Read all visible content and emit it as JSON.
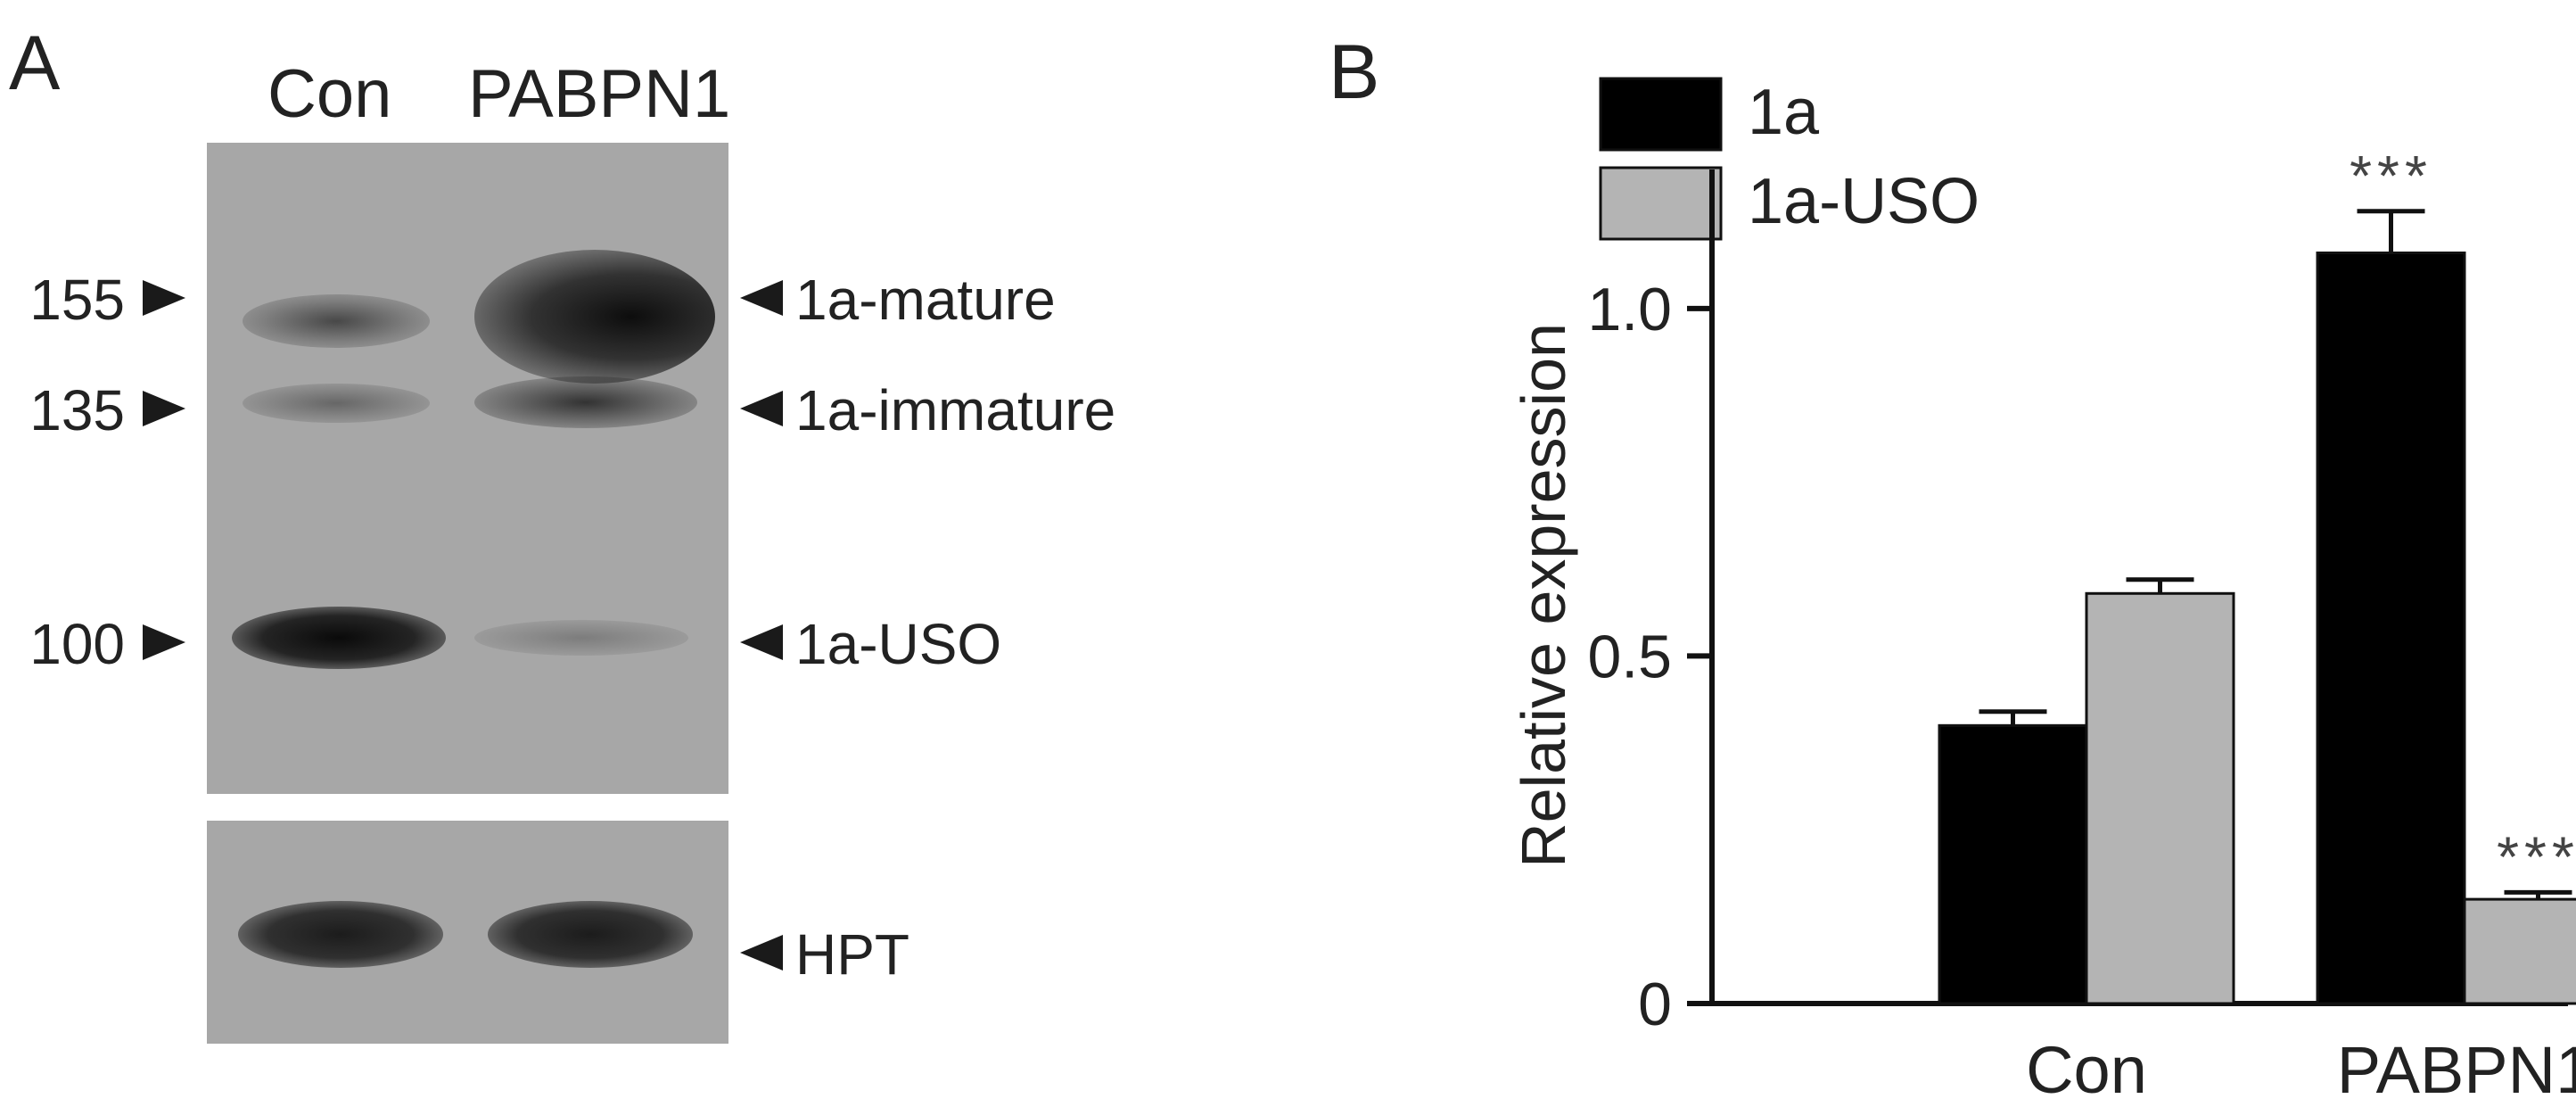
{
  "panel_a": {
    "letter": "A",
    "lanes": [
      "Con",
      "PABPN1"
    ],
    "markers": [
      "155",
      "135",
      "100"
    ],
    "bands": [
      "1a-mature",
      "1a-immature",
      "1a-USO"
    ],
    "loading_control": "HPT"
  },
  "chart_data": {
    "type": "bar",
    "panel_letter": "B",
    "categories": [
      "Con",
      "PABPN1"
    ],
    "series": [
      {
        "name": "1a",
        "values": [
          0.4,
          1.08
        ],
        "errors": [
          0.02,
          0.06
        ],
        "color": "#000000"
      },
      {
        "name": "1a-USO",
        "values": [
          0.59,
          0.15
        ],
        "errors": [
          0.02,
          0.01
        ],
        "color": "#b4b4b4"
      }
    ],
    "annotations": [
      {
        "category": "PABPN1",
        "series": "1a",
        "text": "***"
      },
      {
        "category": "PABPN1",
        "series": "1a-USO",
        "text": "***"
      }
    ],
    "ylabel": "Relative expression",
    "xlabel": "",
    "ylim": [
      0,
      1.2
    ],
    "yticks": [
      "0",
      "0.5",
      "1.0"
    ],
    "grid": false,
    "legend_position": "top-left"
  }
}
